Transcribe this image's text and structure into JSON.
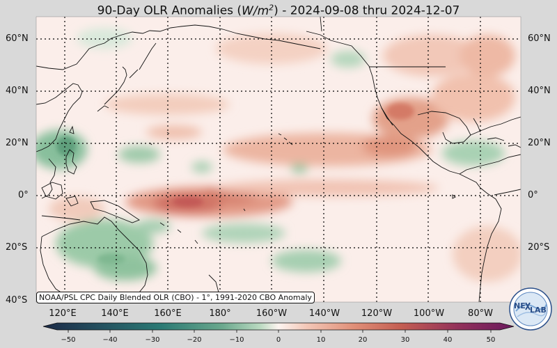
{
  "title": {
    "prefix": "90-Day OLR Anomalies (",
    "unit_base": "W/m",
    "unit_exp": "2",
    "suffix": ") - 2024-09-08 thru 2024-12-07"
  },
  "map": {
    "latitude_labels_left": [
      "60°N",
      "40°N",
      "20°N",
      "0°",
      "20°S",
      "40°S"
    ],
    "latitude_labels_right": [
      "60°N",
      "40°N",
      "20°N",
      "0°",
      "20°S"
    ],
    "longitude_labels": [
      "120°E",
      "140°E",
      "160°E",
      "180°",
      "160°W",
      "140°W",
      "120°W",
      "100°W",
      "80°W"
    ],
    "source_note": "NOAA/PSL CPC Daily Blended OLR (CBO) - 1°, 1991-2020 CBO Anomaly"
  },
  "colorbar": {
    "ticks": [
      "−50",
      "−40",
      "−30",
      "−20",
      "−10",
      "0",
      "10",
      "20",
      "30",
      "40",
      "50"
    ],
    "colors": {
      "neg_50": "#1b2a47",
      "neg_30": "#2a7a74",
      "neg_10": "#a8d1b2",
      "zero": "#fdf4f0",
      "pos_10": "#f3c7b7",
      "pos_30": "#c45e52",
      "pos_50": "#6a1a5e"
    }
  },
  "logo": {
    "text_left": "NE",
    "text_right": "LAB"
  }
}
